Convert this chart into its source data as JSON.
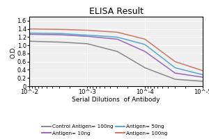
{
  "title": "ELISA Result",
  "ylabel": "O.D.",
  "xlabel": "Serial Dilutions  of Antibody",
  "x_values": [
    0.01,
    0.003,
    0.001,
    0.0003,
    0.0001,
    3e-05,
    1e-05
  ],
  "lines": [
    {
      "label": "Control Antigen= 100ng",
      "color": "#888888",
      "y": [
        1.1,
        1.08,
        1.04,
        0.85,
        0.45,
        0.17,
        0.12
      ]
    },
    {
      "label": "Antigen= 10ng",
      "color": "#9966bb",
      "y": [
        1.27,
        1.26,
        1.22,
        1.15,
        0.85,
        0.32,
        0.22
      ]
    },
    {
      "label": "Antigen= 50ng",
      "color": "#55aacc",
      "y": [
        1.3,
        1.29,
        1.25,
        1.2,
        1.02,
        0.45,
        0.28
      ]
    },
    {
      "label": "Antigen= 100ng",
      "color": "#cc7766",
      "y": [
        1.4,
        1.39,
        1.37,
        1.32,
        1.15,
        0.6,
        0.38
      ]
    }
  ],
  "ylim": [
    0,
    1.7
  ],
  "yticks": [
    0,
    0.2,
    0.4,
    0.6,
    0.8,
    1.0,
    1.2,
    1.4,
    1.6
  ],
  "xtick_vals": [
    0.01,
    0.001,
    0.0001,
    1e-05
  ],
  "xtick_labels": [
    "10^-2",
    "10^-3",
    "10^-4",
    "10^-5"
  ],
  "background_color": "#efefef",
  "title_fontsize": 9,
  "axis_label_fontsize": 6.5,
  "tick_fontsize": 6,
  "legend_fontsize": 5.2
}
